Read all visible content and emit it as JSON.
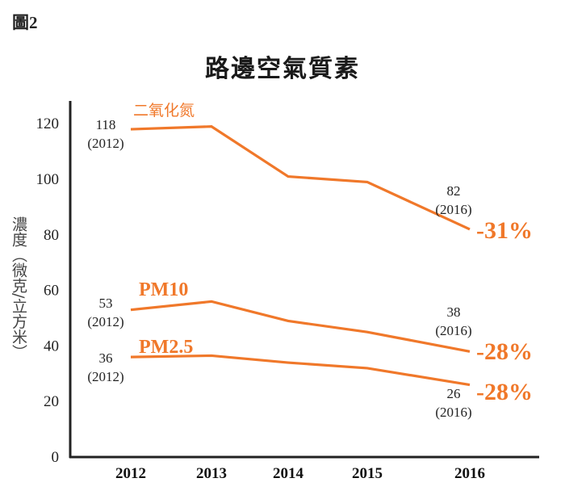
{
  "figure_label": "圖2",
  "chart_data": {
    "type": "line",
    "title": "路邊空氣質素",
    "xlabel": "",
    "ylabel": "濃度（微克/立方米）",
    "x": [
      "2012",
      "2013",
      "2014",
      "2015",
      "2016"
    ],
    "ylim": [
      0,
      125
    ],
    "yticks": [
      0,
      20,
      40,
      60,
      80,
      100,
      120
    ],
    "grid": false,
    "color": "#F0782A",
    "series": [
      {
        "name": "二氧化氮",
        "values": [
          118,
          119,
          101,
          99,
          82
        ],
        "start_label": "118",
        "start_year": "(2012)",
        "end_label": "82",
        "end_year": "(2016)",
        "change": "-31%"
      },
      {
        "name": "PM10",
        "values": [
          53,
          56,
          49,
          45,
          38
        ],
        "start_label": "53",
        "start_year": "(2012)",
        "end_label": "38",
        "end_year": "(2016)",
        "change": "-28%"
      },
      {
        "name": "PM2.5",
        "values": [
          36,
          36.5,
          34,
          32,
          26
        ],
        "start_label": "36",
        "start_year": "(2012)",
        "end_label": "26",
        "end_year": "(2016)",
        "change": "-28%"
      }
    ]
  }
}
